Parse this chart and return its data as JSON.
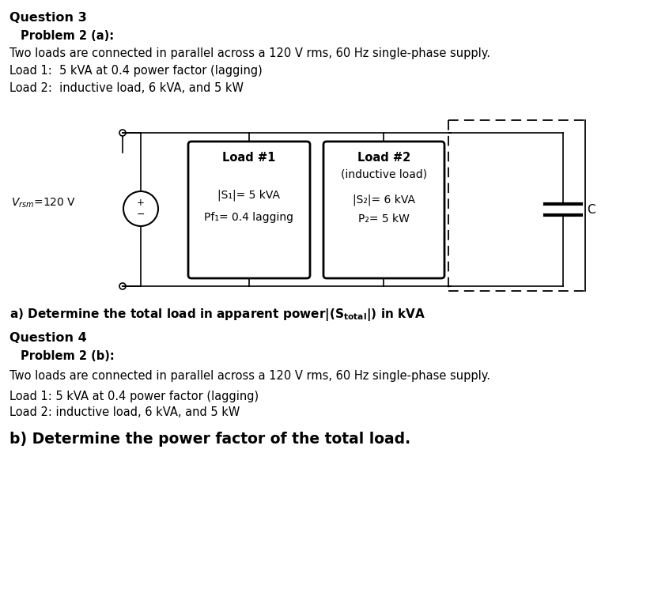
{
  "bg_color": "#ffffff",
  "title1": "Question 3",
  "subtitle1": "Problem 2 (a):",
  "desc1": "Two loads are connected in parallel across a 120 V rms, 60 Hz single-phase supply.",
  "load1_desc": "Load 1:  5 kVA at 0.4 power factor (lagging)",
  "load2_desc": "Load 2:  inductive load, 6 kVA, and 5 kW",
  "load1_title": "Load #1",
  "load1_line1": "|S₁|= 5 kVA",
  "load1_line2": "Pf₁= 0.4 lagging",
  "load2_title": "Load #2",
  "load2_line1": "(inductive load)",
  "load2_line2": "|S₂|= 6 kVA",
  "load2_line3": "P₂= 5 kW",
  "cap_label": "C",
  "title2": "Question 4",
  "subtitle2": "Problem 2 (b):",
  "desc2": "Two loads are connected in parallel across a 120 V rms, 60 Hz single-phase supply.",
  "load1_desc2": "Load 1: 5 kVA at 0.4 power factor (lagging)",
  "load2_desc2": "Load 2: inductive load, 6 kVA, and 5 kW",
  "question_b": "b) Determine the power factor of the total load."
}
